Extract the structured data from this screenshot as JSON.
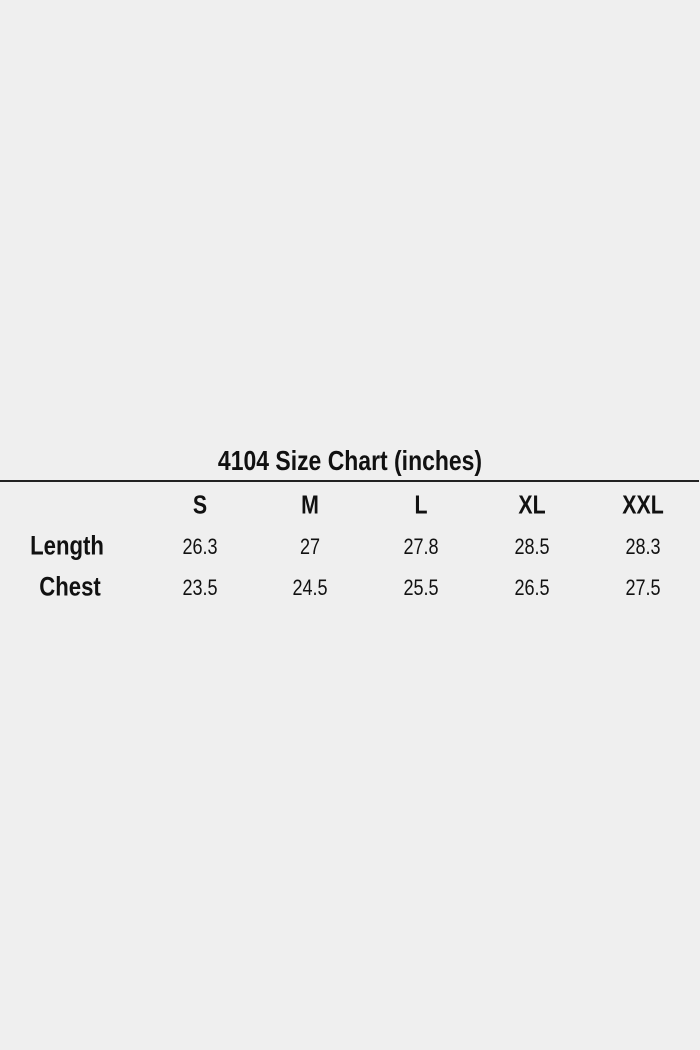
{
  "title": "4104 Size Chart (inches)",
  "sizes": [
    "S",
    "M",
    "L",
    "XL",
    "XXL"
  ],
  "rows": [
    {
      "label": "Length",
      "values": [
        "26.3",
        "27",
        "27.8",
        "28.5",
        "28.3"
      ]
    },
    {
      "label": "Chest",
      "values": [
        "23.5",
        "24.5",
        "25.5",
        "26.5",
        "27.5"
      ]
    }
  ]
}
